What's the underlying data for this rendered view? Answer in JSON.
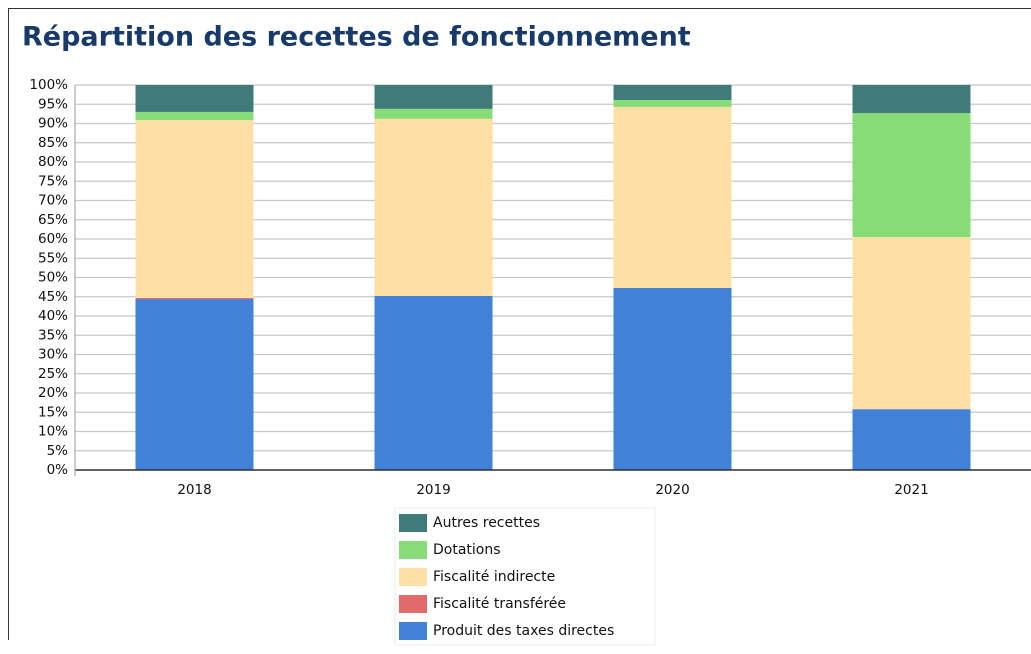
{
  "chart_data": {
    "type": "stacked_bar",
    "title": "Répartition des recettes de fonctionnement",
    "categories": [
      "2018",
      "2019",
      "2020",
      "2021"
    ],
    "series": [
      {
        "name": "Produit des taxes directes",
        "color": "#4181d8",
        "values": [
          44.4,
          45.2,
          47.3,
          15.8
        ]
      },
      {
        "name": "Fiscalité transférée",
        "color": "#e26a6a",
        "values": [
          0.3,
          0,
          0,
          0
        ]
      },
      {
        "name": "Fiscalité indirecte",
        "color": "#fce0a6",
        "values": [
          46.2,
          46.0,
          47.0,
          44.7
        ]
      },
      {
        "name": "Dotations",
        "color": "#88dc78",
        "values": [
          2.1,
          2.6,
          1.8,
          32.2
        ]
      },
      {
        "name": "Autres recettes",
        "color": "#3f7b79",
        "values": [
          7.0,
          6.2,
          3.9,
          7.3
        ]
      }
    ],
    "ylim": [
      0,
      100
    ],
    "yticks": [
      {
        "value": 0,
        "label": "0%"
      },
      {
        "value": 5,
        "label": "5%"
      },
      {
        "value": 10,
        "label": "10%"
      },
      {
        "value": 15,
        "label": "15%"
      },
      {
        "value": 20,
        "label": "20%"
      },
      {
        "value": 25,
        "label": "25%"
      },
      {
        "value": 30,
        "label": "30%"
      },
      {
        "value": 35,
        "label": "35%"
      },
      {
        "value": 40,
        "label": "40%"
      },
      {
        "value": 45,
        "label": "45%"
      },
      {
        "value": 50,
        "label": "50%"
      },
      {
        "value": 55,
        "label": "55%"
      },
      {
        "value": 60,
        "label": "60%"
      },
      {
        "value": 65,
        "label": "65%"
      },
      {
        "value": 70,
        "label": "70%"
      },
      {
        "value": 75,
        "label": "75%"
      },
      {
        "value": 80,
        "label": "80%"
      },
      {
        "value": 85,
        "label": "85%"
      },
      {
        "value": 90,
        "label": "90%"
      },
      {
        "value": 95,
        "label": "95%"
      },
      {
        "value": 100,
        "label": "100%"
      }
    ],
    "grid": true
  }
}
